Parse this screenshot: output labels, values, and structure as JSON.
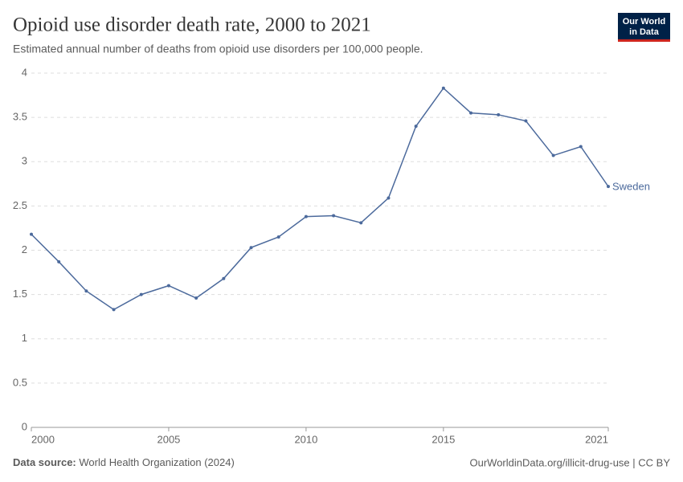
{
  "chart_data": {
    "type": "line",
    "title": "Opioid use disorder death rate, 2000 to 2021",
    "subtitle": "Estimated annual number of deaths from opioid use disorders per 100,000 people.",
    "logo": [
      "Our World",
      "in Data"
    ],
    "source_label": "Data source:",
    "source": "World Health Organization (2024)",
    "footer_right": "OurWorldinData.org/illicit-drug-use | CC BY",
    "x": [
      2000,
      2001,
      2002,
      2003,
      2004,
      2005,
      2006,
      2007,
      2008,
      2009,
      2010,
      2011,
      2012,
      2013,
      2014,
      2015,
      2016,
      2017,
      2018,
      2019,
      2020,
      2021
    ],
    "series": [
      {
        "name": "Sweden",
        "color": "#4c6a9c",
        "values": [
          2.18,
          1.87,
          1.54,
          1.33,
          1.5,
          1.6,
          1.46,
          1.68,
          2.03,
          2.15,
          2.38,
          2.39,
          2.31,
          2.59,
          3.4,
          3.83,
          3.55,
          3.53,
          3.46,
          3.07,
          3.17,
          2.72
        ]
      }
    ],
    "xlim": [
      2000,
      2021
    ],
    "xticks": [
      2000,
      2005,
      2010,
      2015,
      2021
    ],
    "ylim": [
      0,
      4
    ],
    "yticks": [
      0,
      0.5,
      1,
      1.5,
      2,
      2.5,
      3,
      3.5,
      4
    ],
    "grid": true
  }
}
